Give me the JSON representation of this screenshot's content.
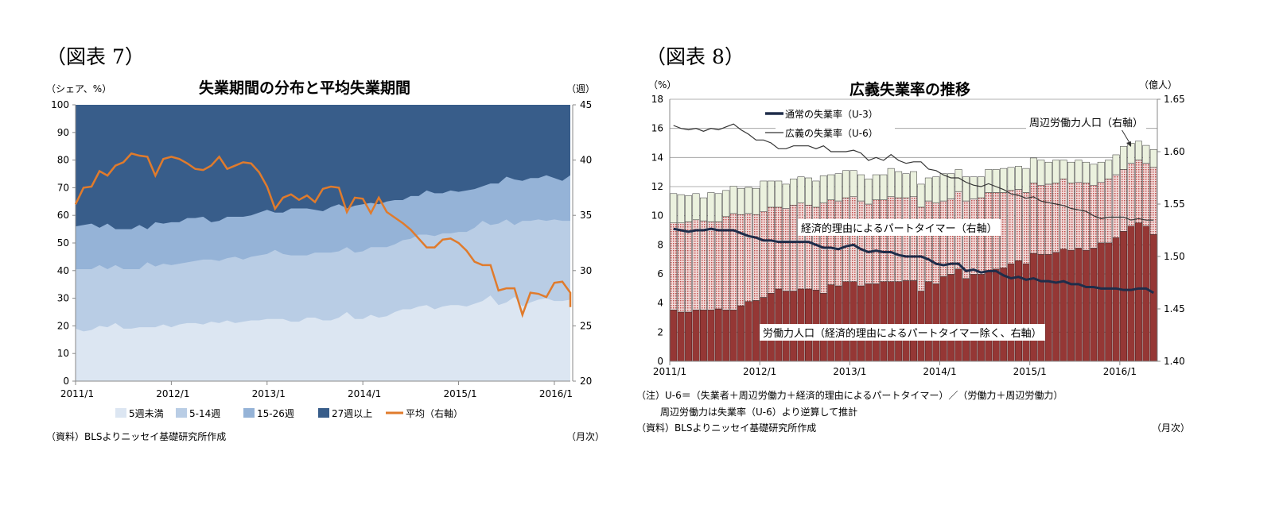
{
  "figure7": {
    "label": "（図表 7）",
    "title": "失業期間の分布と平均失業期間",
    "left_unit": "（シェア、%）",
    "right_unit": "（週）",
    "source": "（資料）BLSよりニッセイ基礎研究所作成",
    "freq": "（月次）"
  },
  "figure8": {
    "label": "（図表 8）",
    "title": "広義失業率の推移",
    "left_unit": "（%）",
    "right_unit": "（億人）",
    "legend_u3": "通常の失業率（U-3）",
    "legend_u6": "広義の失業率（U-6）",
    "annot_marginal": "周辺労働力人口（右軸）",
    "annot_parttime": "経済的理由によるパートタイマー（右軸）",
    "annot_labor": "労働力人口（経済的理由によるパートタイマー除く、右軸）",
    "note1": "（注）U-6＝（失業者＋周辺労働力＋経済的理由によるパートタイマー）／（労働力＋周辺労働力）",
    "note2": "周辺労働力は失業率（U-6）より逆算して推計",
    "source": "（資料）BLSよりニッセイ基礎研究所作成",
    "freq": "（月次）"
  },
  "chart_data": [
    {
      "type": "area",
      "title": "失業期間の分布と平均失業期間",
      "ylabel": "シェア、%",
      "y2label": "週",
      "ylim": [
        0,
        100
      ],
      "y2lim": [
        20,
        45
      ],
      "yticks": [
        0,
        10,
        20,
        30,
        40,
        50,
        60,
        70,
        80,
        90,
        100
      ],
      "y2ticks": [
        20,
        25,
        30,
        35,
        40,
        45
      ],
      "x_tick_labels": [
        "2011/1",
        "2012/1",
        "2013/1",
        "2014/1",
        "2015/1",
        "2016/1"
      ],
      "frequency": "monthly",
      "legend_position": "bottom",
      "stack_mode": "cumulative share (upper boundary of each band, %)",
      "series": [
        {
          "name": "5週未満",
          "color": "#dce6f2",
          "values": [
            19,
            18,
            18.5,
            20,
            19.5,
            21,
            19,
            19,
            19.5,
            19.5,
            19.5,
            20.5,
            19.5,
            20.5,
            21,
            21,
            20.5,
            21.5,
            21,
            22,
            21,
            21.5,
            22,
            22,
            22.5,
            22.5,
            22.5,
            21.5,
            21.5,
            23,
            23,
            22,
            22,
            23,
            25,
            22.5,
            22.5,
            24,
            23,
            23.5,
            25,
            26,
            26,
            27,
            27.5,
            26,
            27,
            27.5,
            27.5,
            27,
            28,
            29,
            31,
            27.5,
            28.5,
            30.5,
            27,
            28.5,
            29.5,
            30,
            29,
            29,
            29.5,
            30
          ]
        },
        {
          "name": "5-14週",
          "color": "#b9cde5",
          "values": [
            40.5,
            40.5,
            40.5,
            42,
            40.5,
            42,
            40.5,
            40.5,
            40.5,
            43,
            41.5,
            42.5,
            42,
            42.5,
            43,
            43.5,
            44,
            44,
            43.5,
            44.5,
            45,
            44,
            45,
            45.5,
            46,
            47.5,
            46,
            45.5,
            45.5,
            45.5,
            46.5,
            46.5,
            46.5,
            47,
            48.5,
            46.5,
            47,
            48.5,
            48.5,
            48.5,
            49.5,
            51,
            51.5,
            53,
            53,
            52.5,
            53.5,
            53.5,
            54,
            54,
            55.5,
            58,
            56.5,
            57,
            58.5,
            56.5,
            58,
            58,
            58.5,
            58,
            58.5,
            58,
            58,
            59.5
          ]
        },
        {
          "name": "15-26週",
          "color": "#95b3d7",
          "values": [
            56,
            56.5,
            57,
            55.5,
            57,
            55,
            55,
            55,
            56.5,
            55,
            57.5,
            57,
            57.5,
            57.5,
            59,
            59,
            59.5,
            57.5,
            58,
            59.5,
            59.5,
            59.5,
            60,
            61,
            62,
            61,
            61,
            62.5,
            62.5,
            62.5,
            62,
            61.5,
            63,
            64,
            62.5,
            63.5,
            64,
            64.5,
            64,
            65,
            65.5,
            65.5,
            67,
            67,
            69,
            68,
            68,
            69,
            68.5,
            69,
            69.5,
            70.5,
            71.5,
            71.5,
            74,
            73,
            72.5,
            73.5,
            73.5,
            74.5,
            73.5,
            72.5,
            74.5,
            75
          ]
        },
        {
          "name": "27週以上",
          "color": "#385d8a",
          "values": [
            100,
            100,
            100,
            100,
            100,
            100,
            100,
            100,
            100,
            100,
            100,
            100,
            100,
            100,
            100,
            100,
            100,
            100,
            100,
            100,
            100,
            100,
            100,
            100,
            100,
            100,
            100,
            100,
            100,
            100,
            100,
            100,
            100,
            100,
            100,
            100,
            100,
            100,
            100,
            100,
            100,
            100,
            100,
            100,
            100,
            100,
            100,
            100,
            100,
            100,
            100,
            100,
            100,
            100,
            100,
            100,
            100,
            100,
            100,
            100,
            100,
            100,
            100,
            100
          ]
        },
        {
          "name": "平均（右軸）",
          "type": "line",
          "axis": "right",
          "color": "#e07b2c",
          "values": [
            36.0,
            37.5,
            37.6,
            39.0,
            38.6,
            39.5,
            39.8,
            40.6,
            40.4,
            40.3,
            38.6,
            40.1,
            40.3,
            40.1,
            39.7,
            39.2,
            39.1,
            39.5,
            40.3,
            39.2,
            39.5,
            39.8,
            39.7,
            38.9,
            37.6,
            35.6,
            36.6,
            36.9,
            36.4,
            36.8,
            36.2,
            37.4,
            37.6,
            37.5,
            35.3,
            36.6,
            36.5,
            35.2,
            36.6,
            35.3,
            34.8,
            34.3,
            33.7,
            32.9,
            32.1,
            32.1,
            32.8,
            32.9,
            32.5,
            31.8,
            30.8,
            30.5,
            30.5,
            28.2,
            28.4,
            28.4,
            26.0,
            28.0,
            27.9,
            27.6,
            28.9,
            29.0,
            28.0,
            26.7
          ]
        }
      ]
    },
    {
      "type": "bar",
      "title": "広義失業率の推移",
      "ylabel": "%",
      "y2label": "億人",
      "ylim": [
        0,
        18
      ],
      "y2lim": [
        1.4,
        1.65
      ],
      "yticks": [
        0,
        2,
        4,
        6,
        8,
        10,
        12,
        14,
        16,
        18
      ],
      "y2ticks": [
        "1.40",
        "1.45",
        "1.50",
        "1.55",
        "1.60",
        "1.65"
      ],
      "x_tick_labels": [
        "2011/1",
        "2012/1",
        "2013/1",
        "2014/1",
        "2015/1",
        "2016/1"
      ],
      "frequency": "monthly",
      "grid": true,
      "stack_mode": "stacked bars on right axis (cumulative top, 億人)",
      "bars": [
        {
          "name": "労働力人口（経済的理由によるパートタイマー除く、右軸）",
          "color": "#953735",
          "values": [
            1.449,
            1.447,
            1.447,
            1.449,
            1.449,
            1.449,
            1.45,
            1.449,
            1.449,
            1.453,
            1.457,
            1.458,
            1.461,
            1.465,
            1.469,
            1.467,
            1.467,
            1.469,
            1.469,
            1.468,
            1.465,
            1.473,
            1.472,
            1.476,
            1.476,
            1.472,
            1.474,
            1.474,
            1.476,
            1.476,
            1.476,
            1.477,
            1.477,
            1.467,
            1.476,
            1.474,
            1.481,
            1.483,
            1.488,
            1.479,
            1.483,
            1.483,
            1.486,
            1.488,
            1.489,
            1.493,
            1.496,
            1.493,
            1.503,
            1.502,
            1.502,
            1.504,
            1.507,
            1.506,
            1.508,
            1.506,
            1.508,
            1.513,
            1.513,
            1.518,
            1.524,
            1.529,
            1.532,
            1.529,
            1.521
          ]
        },
        {
          "name": "経済的理由によるパートタイマー（右軸）",
          "color": "#e6b9b8",
          "values": [
            1.532,
            1.532,
            1.533,
            1.535,
            1.534,
            1.533,
            1.533,
            1.538,
            1.541,
            1.54,
            1.541,
            1.54,
            1.543,
            1.547,
            1.547,
            1.546,
            1.549,
            1.551,
            1.549,
            1.547,
            1.551,
            1.554,
            1.553,
            1.556,
            1.557,
            1.553,
            1.55,
            1.554,
            1.554,
            1.557,
            1.556,
            1.556,
            1.557,
            1.547,
            1.553,
            1.551,
            1.553,
            1.555,
            1.562,
            1.553,
            1.555,
            1.556,
            1.561,
            1.561,
            1.561,
            1.563,
            1.564,
            1.561,
            1.57,
            1.568,
            1.569,
            1.57,
            1.574,
            1.57,
            1.571,
            1.57,
            1.568,
            1.571,
            1.574,
            1.578,
            1.583,
            1.589,
            1.592,
            1.589,
            1.585
          ]
        },
        {
          "name": "周辺労働力人口（右軸）",
          "color": "#ebf1de",
          "values": [
            1.56,
            1.559,
            1.558,
            1.56,
            1.556,
            1.561,
            1.56,
            1.563,
            1.567,
            1.565,
            1.566,
            1.565,
            1.572,
            1.572,
            1.572,
            1.569,
            1.574,
            1.576,
            1.575,
            1.572,
            1.577,
            1.578,
            1.579,
            1.582,
            1.582,
            1.578,
            1.574,
            1.578,
            1.578,
            1.584,
            1.581,
            1.579,
            1.581,
            1.569,
            1.575,
            1.576,
            1.579,
            1.579,
            1.583,
            1.576,
            1.576,
            1.576,
            1.583,
            1.583,
            1.584,
            1.585,
            1.586,
            1.584,
            1.594,
            1.592,
            1.59,
            1.592,
            1.592,
            1.59,
            1.592,
            1.59,
            1.588,
            1.59,
            1.592,
            1.597,
            1.605,
            1.608,
            1.61,
            1.606,
            1.602
          ]
        }
      ],
      "lines": [
        {
          "name": "通常の失業率（U-3）",
          "color": "#1f2d4a",
          "values": [
            9.1,
            9.0,
            8.9,
            9.0,
            9.0,
            9.1,
            9.0,
            9.0,
            9.0,
            8.8,
            8.6,
            8.5,
            8.3,
            8.3,
            8.2,
            8.2,
            8.2,
            8.2,
            8.2,
            8.0,
            7.8,
            7.8,
            7.7,
            7.9,
            8.0,
            7.7,
            7.5,
            7.6,
            7.5,
            7.5,
            7.3,
            7.2,
            7.2,
            7.2,
            7.0,
            6.7,
            6.6,
            6.7,
            6.7,
            6.2,
            6.3,
            6.1,
            6.2,
            6.2,
            5.9,
            5.7,
            5.8,
            5.6,
            5.7,
            5.5,
            5.5,
            5.4,
            5.5,
            5.3,
            5.3,
            5.1,
            5.1,
            5.0,
            5.0,
            5.0,
            4.9,
            4.9,
            5.0,
            5.0,
            4.7
          ]
        },
        {
          "name": "広義の失業率（U-6）",
          "color": "#333333",
          "values": [
            16.2,
            16.0,
            15.9,
            16.0,
            15.8,
            16.0,
            15.9,
            16.1,
            16.3,
            15.9,
            15.6,
            15.2,
            15.2,
            15.0,
            14.6,
            14.6,
            14.8,
            14.8,
            14.8,
            14.6,
            14.8,
            14.4,
            14.4,
            14.4,
            14.5,
            14.3,
            13.8,
            14.0,
            13.8,
            14.2,
            13.8,
            13.6,
            13.7,
            13.7,
            13.2,
            13.1,
            12.8,
            12.6,
            12.6,
            12.3,
            12.1,
            12.0,
            12.2,
            12.0,
            11.8,
            11.5,
            11.4,
            11.2,
            11.3,
            11.0,
            10.9,
            10.8,
            10.7,
            10.5,
            10.4,
            10.3,
            10.0,
            9.8,
            9.9,
            9.9,
            9.9,
            9.7,
            9.8,
            9.7,
            9.7
          ]
        }
      ]
    }
  ]
}
